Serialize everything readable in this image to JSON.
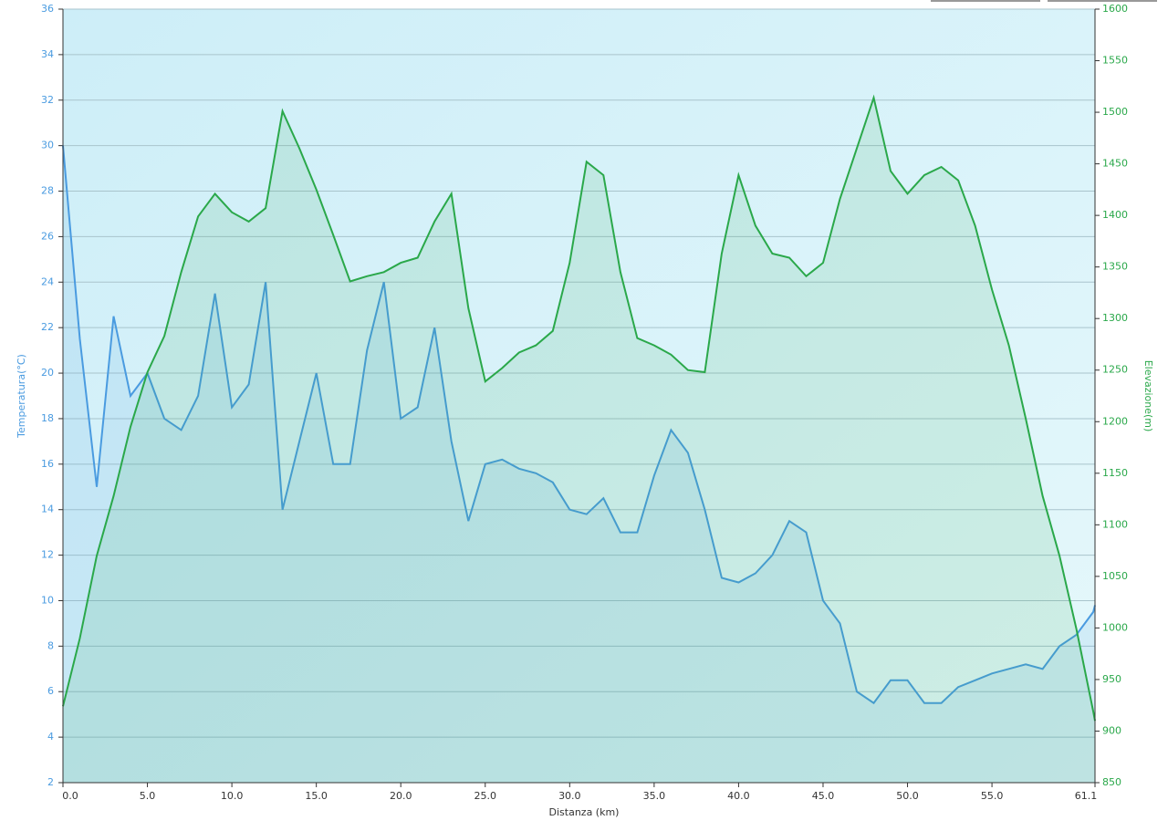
{
  "chart_data": {
    "type": "line",
    "xlabel": "Distanza  (km)",
    "ylabel": "Temperatura(°C)",
    "y2label": "Elevazione(m)",
    "grid": true,
    "xlim": [
      0,
      61.1
    ],
    "xticks": [
      {
        "value": 0,
        "label": "0.0"
      },
      {
        "value": 5,
        "label": "5.0"
      },
      {
        "value": 10,
        "label": "10.0"
      },
      {
        "value": 15,
        "label": "15.0"
      },
      {
        "value": 20,
        "label": "20.0"
      },
      {
        "value": 25,
        "label": "25.0"
      },
      {
        "value": 30,
        "label": "30.0"
      },
      {
        "value": 35,
        "label": "35.0"
      },
      {
        "value": 40,
        "label": "40.0"
      },
      {
        "value": 45,
        "label": "45.0"
      },
      {
        "value": 50,
        "label": "50.0"
      },
      {
        "value": 55,
        "label": "55.0"
      },
      61.1
    ],
    "ylim": [
      2,
      36
    ],
    "yticks": [
      2,
      4,
      6,
      8,
      10,
      12,
      14,
      16,
      18,
      20,
      22,
      24,
      26,
      28,
      30,
      32,
      34,
      36
    ],
    "y2lim": [
      850,
      1600
    ],
    "y2ticks": [
      850,
      900,
      950,
      1000,
      1050,
      1100,
      1150,
      1200,
      1250,
      1300,
      1350,
      1400,
      1450,
      1500,
      1550,
      1600
    ],
    "x": [
      0,
      1,
      2,
      3,
      4,
      5,
      6,
      7,
      8,
      9,
      10,
      11,
      12,
      13,
      14,
      15,
      16,
      17,
      18,
      19,
      20,
      21,
      22,
      23,
      24,
      25,
      26,
      27,
      28,
      29,
      30,
      31,
      32,
      33,
      34,
      35,
      36,
      37,
      38,
      39,
      40,
      41,
      42,
      43,
      44,
      45,
      46,
      47,
      48,
      49,
      50,
      51,
      52,
      53,
      54,
      55,
      56,
      57,
      58,
      59,
      60,
      61,
      61.1
    ],
    "series": [
      {
        "name": "Temperatura",
        "color": "#4a9be0",
        "axis": "y",
        "values": [
          30,
          21.5,
          15,
          22.5,
          19,
          20,
          18,
          17.5,
          19,
          23.5,
          18.5,
          19.5,
          24,
          14,
          17,
          20,
          16,
          16,
          21,
          24,
          18,
          18.5,
          22,
          17,
          13.5,
          16,
          16.2,
          15.8,
          15.6,
          15.2,
          14,
          13.8,
          14.5,
          13,
          13,
          15.5,
          17.5,
          16.5,
          14,
          11,
          10.8,
          11.2,
          12,
          13.5,
          13,
          10,
          9,
          6,
          5.5,
          6.5,
          6.5,
          5.5,
          5.5,
          6.2,
          6.5,
          6.8,
          7,
          7.2,
          7,
          8,
          8.5,
          9.5,
          9.8
        ]
      },
      {
        "name": "Elevazione",
        "color": "#2aa84a",
        "axis": "y2",
        "values": [
          924,
          990,
          1070,
          1128,
          1195,
          1248,
          1283,
          1345,
          1399,
          1421,
          1403,
          1394,
          1407,
          1501,
          1465,
          1425,
          1381,
          1336,
          1341,
          1345,
          1354,
          1359,
          1394,
          1421,
          1310,
          1239,
          1252,
          1267,
          1274,
          1288,
          1354,
          1452,
          1439,
          1345,
          1281,
          1274,
          1265,
          1250,
          1248,
          1363,
          1439,
          1390,
          1363,
          1359,
          1341,
          1354,
          1416,
          1465,
          1514,
          1443,
          1421,
          1439,
          1447,
          1434,
          1390,
          1328,
          1274,
          1203,
          1128,
          1070,
          999,
          919,
          910
        ]
      }
    ]
  }
}
